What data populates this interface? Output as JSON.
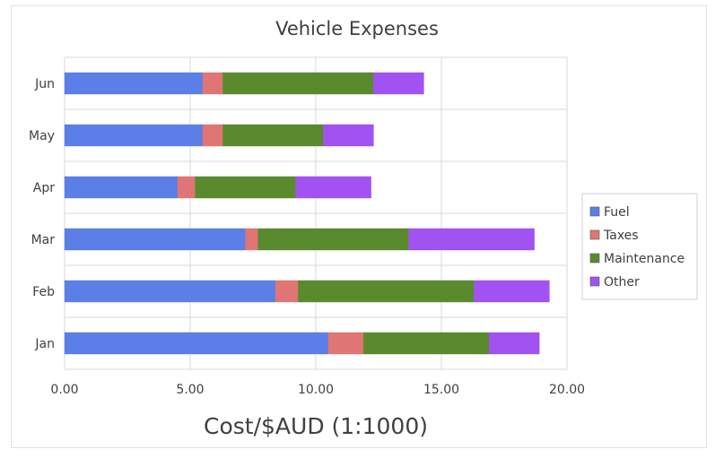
{
  "chart_data": {
    "type": "bar",
    "orientation": "horizontal",
    "stacked": true,
    "title": "Vehicle Expenses",
    "xlabel": "Cost/$AUD (1:1000)",
    "ylabel": "",
    "xlim": [
      0,
      20
    ],
    "xticks": [
      "0.00",
      "5.00",
      "10.00",
      "15.00",
      "20.00"
    ],
    "categories": [
      "Jan",
      "Feb",
      "Mar",
      "Apr",
      "May",
      "Jun"
    ],
    "series": [
      {
        "name": "Fuel",
        "color": "#5b7fe6",
        "values": [
          10.5,
          8.4,
          7.2,
          4.5,
          5.5,
          5.5
        ]
      },
      {
        "name": "Taxes",
        "color": "#e07575",
        "values": [
          1.4,
          0.9,
          0.5,
          0.7,
          0.8,
          0.8
        ]
      },
      {
        "name": "Maintenance",
        "color": "#5a8a2e",
        "values": [
          5.0,
          7.0,
          6.0,
          4.0,
          4.0,
          6.0
        ]
      },
      {
        "name": "Other",
        "color": "#a152f0",
        "values": [
          2.0,
          3.0,
          5.0,
          3.0,
          2.0,
          2.0
        ]
      }
    ],
    "grid": true,
    "legend_position": "right"
  }
}
